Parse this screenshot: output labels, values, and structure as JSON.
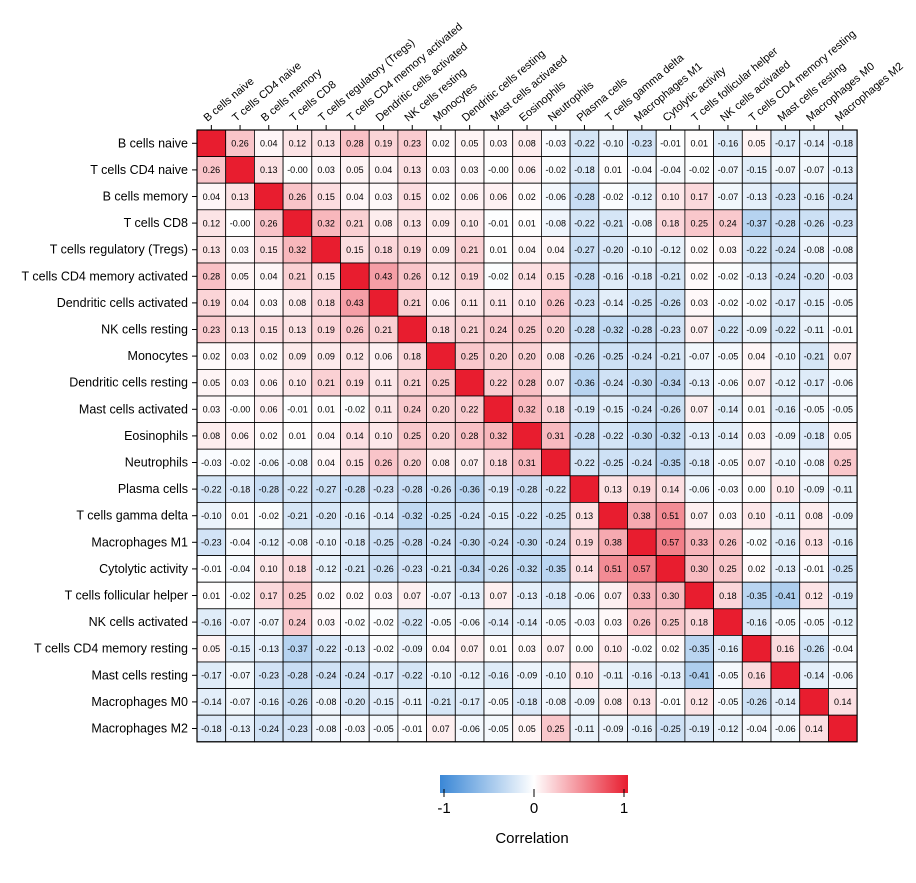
{
  "chart_data": {
    "type": "heatmap",
    "labels": [
      "B cells naive",
      "T cells CD4 naive",
      "B cells memory",
      "T cells CD8",
      "T cells regulatory (Tregs)",
      "T cells CD4 memory activated",
      "Dendritic cells activated",
      "NK cells resting",
      "Monocytes",
      "Dendritic cells resting",
      "Mast cells activated",
      "Eosinophils",
      "Neutrophils",
      "Plasma cells",
      "T cells gamma delta",
      "Macrophages M1",
      "Cytolytic activity",
      "T cells follicular helper",
      "NK cells activated",
      "T cells CD4 memory resting",
      "Mast cells resting",
      "Macrophages M0",
      "Macrophages M2"
    ],
    "values": [
      [
        null,
        0.26,
        0.04,
        0.12,
        0.13,
        0.28,
        0.19,
        0.23,
        0.02,
        0.05,
        0.03,
        0.08,
        -0.03,
        -0.22,
        -0.1,
        -0.23,
        -0.01,
        0.01,
        -0.16,
        0.05,
        -0.17,
        -0.14,
        -0.18
      ],
      [
        0.26,
        null,
        0.13,
        -0.0,
        0.03,
        0.05,
        0.04,
        0.13,
        0.03,
        0.03,
        -0.0,
        0.06,
        -0.02,
        -0.18,
        0.01,
        -0.04,
        -0.04,
        -0.02,
        -0.07,
        -0.15,
        -0.07,
        -0.07,
        -0.13
      ],
      [
        0.04,
        0.13,
        null,
        0.26,
        0.15,
        0.04,
        0.03,
        0.15,
        0.02,
        0.06,
        0.06,
        0.02,
        -0.06,
        -0.28,
        -0.02,
        -0.12,
        0.1,
        0.17,
        -0.07,
        -0.13,
        -0.23,
        -0.16,
        -0.24
      ],
      [
        0.12,
        -0.0,
        0.26,
        null,
        0.32,
        0.21,
        0.08,
        0.13,
        0.09,
        0.1,
        -0.01,
        0.01,
        -0.08,
        -0.22,
        -0.21,
        -0.08,
        0.18,
        0.25,
        0.24,
        -0.37,
        -0.28,
        -0.26,
        -0.23
      ],
      [
        0.13,
        0.03,
        0.15,
        0.32,
        null,
        0.15,
        0.18,
        0.19,
        0.09,
        0.21,
        0.01,
        0.04,
        0.04,
        -0.27,
        -0.2,
        -0.1,
        -0.12,
        0.02,
        0.03,
        -0.22,
        -0.24,
        -0.08,
        -0.08
      ],
      [
        0.28,
        0.05,
        0.04,
        0.21,
        0.15,
        null,
        0.43,
        0.26,
        0.12,
        0.19,
        -0.02,
        0.14,
        0.15,
        -0.28,
        -0.16,
        -0.18,
        -0.21,
        0.02,
        -0.02,
        -0.13,
        -0.24,
        -0.2,
        -0.03
      ],
      [
        0.19,
        0.04,
        0.03,
        0.08,
        0.18,
        0.43,
        null,
        0.21,
        0.06,
        0.11,
        0.11,
        0.1,
        0.26,
        -0.23,
        -0.14,
        -0.25,
        -0.26,
        0.03,
        -0.02,
        -0.02,
        -0.17,
        -0.15,
        -0.05
      ],
      [
        0.23,
        0.13,
        0.15,
        0.13,
        0.19,
        0.26,
        0.21,
        null,
        0.18,
        0.21,
        0.24,
        0.25,
        0.2,
        -0.28,
        -0.32,
        -0.28,
        -0.23,
        0.07,
        -0.22,
        -0.09,
        -0.22,
        -0.11,
        -0.01
      ],
      [
        0.02,
        0.03,
        0.02,
        0.09,
        0.09,
        0.12,
        0.06,
        0.18,
        null,
        0.25,
        0.2,
        0.2,
        0.08,
        -0.26,
        -0.25,
        -0.24,
        -0.21,
        -0.07,
        -0.05,
        0.04,
        -0.1,
        -0.21,
        0.07
      ],
      [
        0.05,
        0.03,
        0.06,
        0.1,
        0.21,
        0.19,
        0.11,
        0.21,
        0.25,
        null,
        0.22,
        0.28,
        0.07,
        -0.36,
        -0.24,
        -0.3,
        -0.34,
        -0.13,
        -0.06,
        0.07,
        -0.12,
        -0.17,
        -0.06
      ],
      [
        0.03,
        -0.0,
        0.06,
        -0.01,
        0.01,
        -0.02,
        0.11,
        0.24,
        0.2,
        0.22,
        null,
        0.32,
        0.18,
        -0.19,
        -0.15,
        -0.24,
        -0.26,
        0.07,
        -0.14,
        0.01,
        -0.16,
        -0.05,
        -0.05
      ],
      [
        0.08,
        0.06,
        0.02,
        0.01,
        0.04,
        0.14,
        0.1,
        0.25,
        0.2,
        0.28,
        0.32,
        null,
        0.31,
        -0.28,
        -0.22,
        -0.3,
        -0.32,
        -0.13,
        -0.14,
        0.03,
        -0.09,
        -0.18,
        0.05
      ],
      [
        -0.03,
        -0.02,
        -0.06,
        -0.08,
        0.04,
        0.15,
        0.26,
        0.2,
        0.08,
        0.07,
        0.18,
        0.31,
        null,
        -0.22,
        -0.25,
        -0.24,
        -0.35,
        -0.18,
        -0.05,
        0.07,
        -0.1,
        -0.08,
        0.25
      ],
      [
        -0.22,
        -0.18,
        -0.28,
        -0.22,
        -0.27,
        -0.28,
        -0.23,
        -0.28,
        -0.26,
        -0.36,
        -0.19,
        -0.28,
        -0.22,
        null,
        0.13,
        0.19,
        0.14,
        -0.06,
        -0.03,
        0.0,
        0.1,
        -0.09,
        -0.11
      ],
      [
        -0.1,
        0.01,
        -0.02,
        -0.21,
        -0.2,
        -0.16,
        -0.14,
        -0.32,
        -0.25,
        -0.24,
        -0.15,
        -0.22,
        -0.25,
        0.13,
        null,
        0.38,
        0.51,
        0.07,
        0.03,
        0.1,
        -0.11,
        0.08,
        -0.09
      ],
      [
        -0.23,
        -0.04,
        -0.12,
        -0.08,
        -0.1,
        -0.18,
        -0.25,
        -0.28,
        -0.24,
        -0.3,
        -0.24,
        -0.3,
        -0.24,
        0.19,
        0.38,
        null,
        0.57,
        0.33,
        0.26,
        -0.02,
        -0.16,
        0.13,
        -0.16
      ],
      [
        -0.01,
        -0.04,
        0.1,
        0.18,
        -0.12,
        -0.21,
        -0.26,
        -0.23,
        -0.21,
        -0.34,
        -0.26,
        -0.32,
        -0.35,
        0.14,
        0.51,
        0.57,
        null,
        0.3,
        0.25,
        0.02,
        -0.13,
        -0.01,
        -0.25
      ],
      [
        0.01,
        -0.02,
        0.17,
        0.25,
        0.02,
        0.02,
        0.03,
        0.07,
        -0.07,
        -0.13,
        0.07,
        -0.13,
        -0.18,
        -0.06,
        0.07,
        0.33,
        0.3,
        null,
        0.18,
        -0.35,
        -0.41,
        0.12,
        -0.19
      ],
      [
        -0.16,
        -0.07,
        -0.07,
        0.24,
        0.03,
        -0.02,
        -0.02,
        -0.22,
        -0.05,
        -0.06,
        -0.14,
        -0.14,
        -0.05,
        -0.03,
        0.03,
        0.26,
        0.25,
        0.18,
        null,
        -0.16,
        -0.05,
        -0.05,
        -0.12
      ],
      [
        0.05,
        -0.15,
        -0.13,
        -0.37,
        -0.22,
        -0.13,
        -0.02,
        -0.09,
        0.04,
        0.07,
        0.01,
        0.03,
        0.07,
        0.0,
        0.1,
        -0.02,
        0.02,
        -0.35,
        -0.16,
        null,
        0.16,
        -0.26,
        -0.04
      ],
      [
        -0.17,
        -0.07,
        -0.23,
        -0.28,
        -0.24,
        -0.24,
        -0.17,
        -0.22,
        -0.1,
        -0.12,
        -0.16,
        -0.09,
        -0.1,
        0.1,
        -0.11,
        -0.16,
        -0.13,
        -0.41,
        -0.05,
        0.16,
        null,
        -0.14,
        -0.06
      ],
      [
        -0.14,
        -0.07,
        -0.16,
        -0.26,
        -0.08,
        -0.2,
        -0.15,
        -0.11,
        -0.21,
        -0.17,
        -0.05,
        -0.18,
        -0.08,
        -0.09,
        0.08,
        0.13,
        -0.01,
        0.12,
        -0.05,
        -0.26,
        -0.14,
        null,
        0.14
      ],
      [
        -0.18,
        -0.13,
        -0.24,
        -0.23,
        -0.08,
        -0.03,
        -0.05,
        -0.01,
        0.07,
        -0.06,
        -0.05,
        0.05,
        0.25,
        -0.11,
        -0.09,
        -0.16,
        -0.25,
        -0.19,
        -0.12,
        -0.04,
        -0.06,
        0.14,
        null
      ]
    ],
    "diagonal_value": 1,
    "colorscale": {
      "negative": "#3a87d6",
      "zero": "#ffffff",
      "positive": "#e81d2f",
      "min": -1,
      "max": 1
    },
    "colorbar": {
      "title": "Correlation",
      "ticks": [
        "-1",
        "0",
        "1"
      ],
      "tick_values": [
        -1,
        0,
        1
      ]
    },
    "x_labels_rotated": true
  }
}
